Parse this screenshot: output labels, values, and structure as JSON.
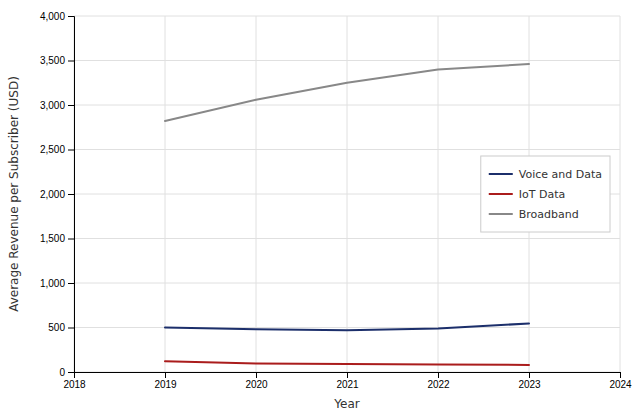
{
  "chart_data": {
    "type": "line",
    "xlabel": "Year",
    "ylabel": "Average Revenue per Subscriber (USD)",
    "x": [
      2019,
      2020,
      2021,
      2022,
      2023
    ],
    "xlim": [
      2018,
      2024
    ],
    "xticks": [
      2018,
      2019,
      2020,
      2021,
      2022,
      2023,
      2024
    ],
    "ylim": [
      0,
      4000
    ],
    "yticks": [
      0,
      500,
      {
        "value": 1000,
        "label": "1,000"
      },
      {
        "value": 1500,
        "label": "1,500"
      },
      {
        "value": 2000,
        "label": "2,000"
      },
      {
        "value": 2500,
        "label": "2,500"
      },
      {
        "value": 3000,
        "label": "3,000"
      },
      {
        "value": 3500,
        "label": "3,500"
      },
      {
        "value": 4000,
        "label": "4,000"
      }
    ],
    "grid": true,
    "legend": "right",
    "series": [
      {
        "name": "Voice and Data",
        "color": "#1c2f6b",
        "values": [
          500,
          480,
          470,
          490,
          545
        ]
      },
      {
        "name": "IoT Data",
        "color": "#aa1c1c",
        "values": [
          120,
          95,
          90,
          85,
          80
        ]
      },
      {
        "name": "Broadband",
        "color": "#888888",
        "values": [
          2820,
          3060,
          3250,
          3400,
          3460
        ]
      }
    ]
  }
}
